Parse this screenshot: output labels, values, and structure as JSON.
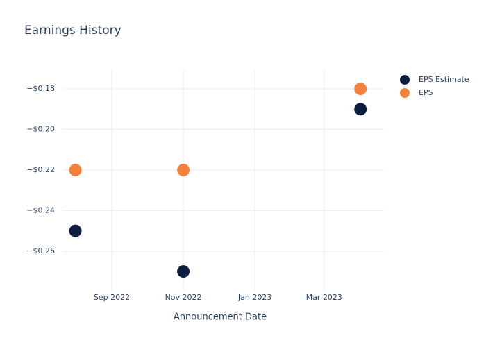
{
  "chart_data": {
    "type": "scatter",
    "title": "Earnings History",
    "x_label": "Announcement Date",
    "x": [
      "2022-08",
      "2022-11",
      "2023-04"
    ],
    "series": [
      {
        "name": "EPS Estimate",
        "color": "#0d1f3f",
        "values": [
          -0.25,
          -0.27,
          -0.19
        ]
      },
      {
        "name": "EPS",
        "color": "#f5813a",
        "values": [
          -0.22,
          -0.22,
          -0.18
        ]
      }
    ],
    "xlim": [
      "2022-07-21",
      "2023-04-21"
    ],
    "xticks": [
      {
        "value": "2022-09",
        "label": "Sep 2022"
      },
      {
        "value": "2022-11",
        "label": "Nov 2022"
      },
      {
        "value": "2023-01",
        "label": "Jan 2023"
      },
      {
        "value": "2023-03",
        "label": "Mar 2023"
      }
    ],
    "ylim": [
      -0.2799,
      -0.1704
    ],
    "yticks": [
      {
        "value": -0.18,
        "label": "−$0.18"
      },
      {
        "value": -0.2,
        "label": "−$0.20"
      },
      {
        "value": -0.22,
        "label": "−$0.22"
      },
      {
        "value": -0.24,
        "label": "−$0.24"
      },
      {
        "value": -0.26,
        "label": "−$0.26"
      }
    ],
    "grid": true,
    "legend": "top-right"
  }
}
